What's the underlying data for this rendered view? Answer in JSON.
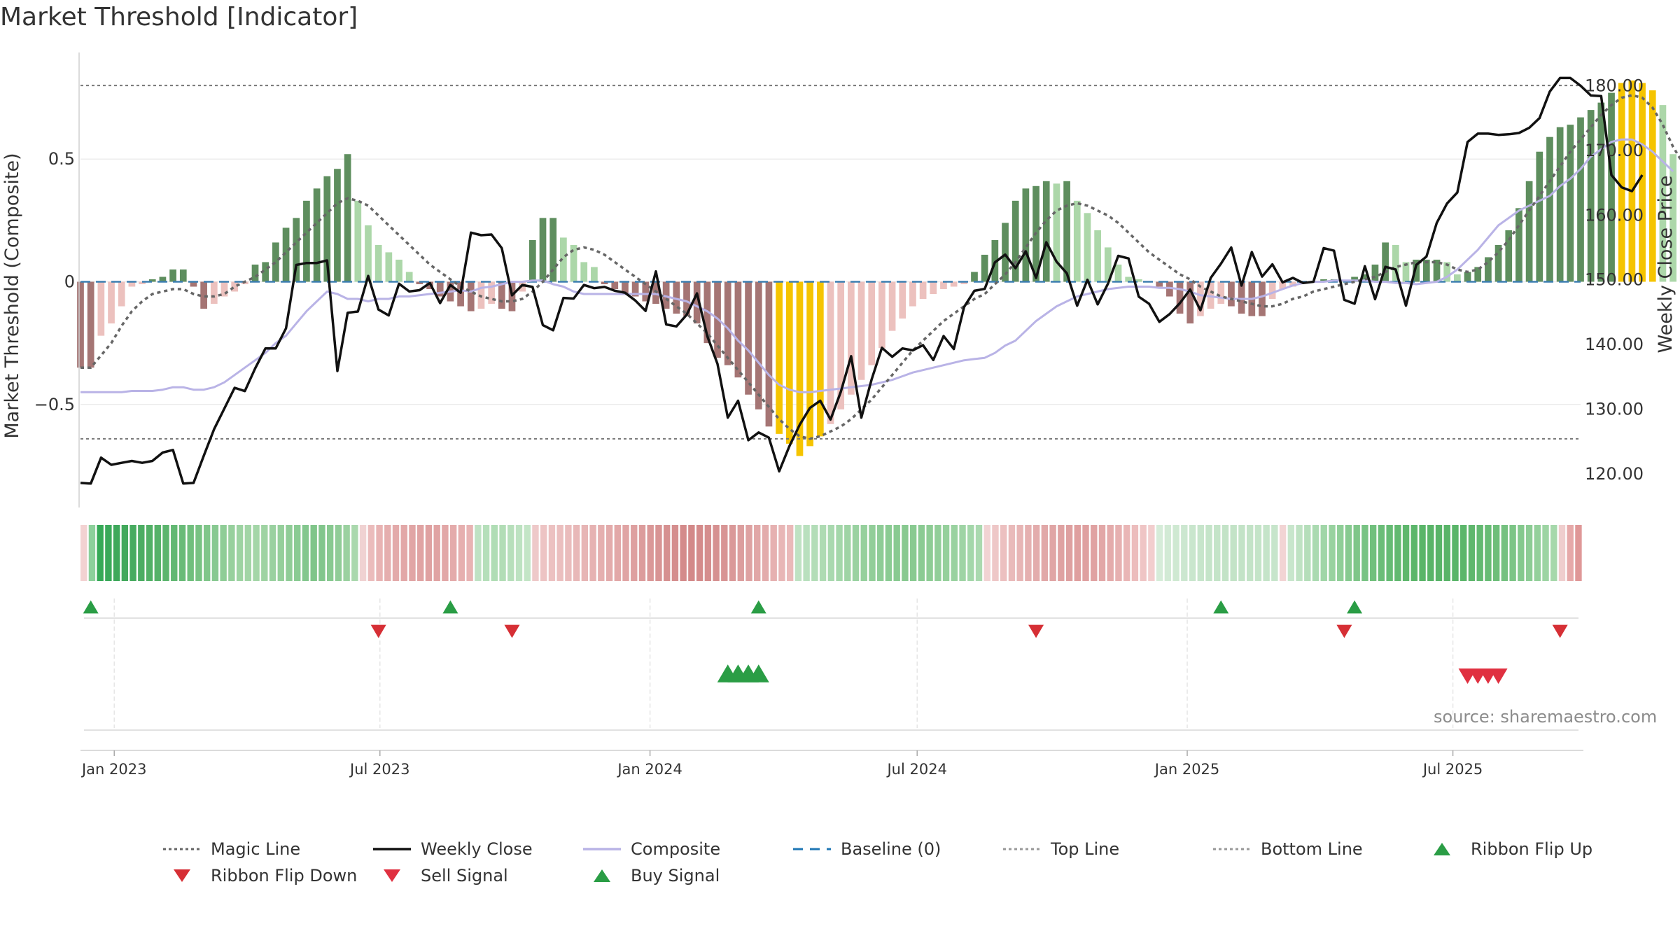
{
  "title": "Market Threshold [Indicator]",
  "source_note": "source: sharemaestro.com",
  "legend": [
    {
      "label": "Magic Line",
      "kind": "dotted-line",
      "color": "#666666"
    },
    {
      "label": "Weekly Close",
      "kind": "solid-line",
      "color": "#111111"
    },
    {
      "label": "Composite",
      "kind": "solid-line",
      "color": "#b9b3e6"
    },
    {
      "label": "Baseline (0)",
      "kind": "dashed-line",
      "color": "#1f77b4"
    },
    {
      "label": "Top Line",
      "kind": "dotted-line",
      "color": "#999999"
    },
    {
      "label": "Bottom Line",
      "kind": "dotted-line",
      "color": "#999999"
    },
    {
      "label": "Ribbon Flip Up",
      "kind": "triangle-up",
      "color": "#2a9d45"
    },
    {
      "label": "Ribbon Flip Down",
      "kind": "triangle-down",
      "color": "#d62f35"
    },
    {
      "label": "Sell Signal",
      "kind": "triangle-down",
      "color": "#e03040"
    },
    {
      "label": "Buy Signal",
      "kind": "triangle-up",
      "color": "#2a9d45"
    }
  ],
  "chart_data": {
    "type": "bar",
    "x_axis": {
      "start": "2022-12-09",
      "end": "2025-09-26",
      "tick_dates": [
        "2023-01-01",
        "2023-07-01",
        "2024-01-01",
        "2024-07-01",
        "2025-01-01",
        "2025-07-01"
      ],
      "tick_labels": [
        "Jan 2023",
        "Jul 2023",
        "Jan 2024",
        "Jul 2024",
        "Jan 2025",
        "Jul 2025"
      ]
    },
    "left_axis": {
      "label": "Market Threshold (Composite)",
      "range": [
        -0.92,
        0.92
      ],
      "ticks": [
        0.5,
        0,
        -0.5
      ],
      "tick_labels": [
        "0.5",
        "0",
        "−0.5"
      ]
    },
    "right_axis": {
      "label": "Weekly Close Price",
      "range": [
        114.8,
        184.6
      ],
      "ticks": [
        180,
        170,
        160,
        150,
        140,
        130,
        120
      ],
      "tick_labels": [
        "180.00",
        "170.00",
        "160.00",
        "150.00",
        "140.00",
        "130.00",
        "120.00"
      ]
    },
    "top_line": 0.8,
    "bottom_line": -0.64,
    "baseline": 0,
    "grid": true,
    "legend_position": "bottom",
    "series": [
      {
        "name": "Market Threshold bars",
        "axis": "left",
        "style": "bar",
        "values": [
          -0.35,
          -0.35,
          -0.22,
          -0.17,
          -0.1,
          -0.02,
          -0.01,
          0.01,
          0.02,
          0.05,
          0.05,
          -0.02,
          -0.11,
          -0.09,
          -0.06,
          -0.04,
          -0.01,
          0.07,
          0.08,
          0.16,
          0.22,
          0.26,
          0.33,
          0.38,
          0.43,
          0.46,
          0.52,
          0.33,
          0.23,
          0.15,
          0.12,
          0.09,
          0.04,
          -0.01,
          -0.03,
          -0.06,
          -0.08,
          -0.1,
          -0.12,
          -0.11,
          -0.09,
          -0.11,
          -0.12,
          -0.04,
          0.17,
          0.26,
          0.26,
          0.18,
          0.15,
          0.08,
          0.06,
          -0.01,
          -0.03,
          -0.05,
          -0.06,
          -0.08,
          -0.09,
          -0.11,
          -0.13,
          -0.14,
          -0.17,
          -0.25,
          -0.31,
          -0.34,
          -0.39,
          -0.46,
          -0.52,
          -0.59,
          -0.62,
          -0.66,
          -0.71,
          -0.67,
          -0.63,
          -0.58,
          -0.52,
          -0.46,
          -0.4,
          -0.34,
          -0.27,
          -0.2,
          -0.15,
          -0.1,
          -0.07,
          -0.05,
          -0.03,
          -0.02,
          -0.01,
          0.04,
          0.11,
          0.17,
          0.24,
          0.33,
          0.38,
          0.39,
          0.41,
          0.4,
          0.41,
          0.33,
          0.28,
          0.21,
          0.14,
          0.07,
          0.02,
          0.01,
          0.0,
          -0.02,
          -0.06,
          -0.13,
          -0.17,
          -0.14,
          -0.11,
          -0.09,
          -0.1,
          -0.13,
          -0.14,
          -0.14,
          -0.07,
          -0.03,
          -0.02,
          0.0,
          0.0,
          0.01,
          0.01,
          0.0,
          0.02,
          0.03,
          0.07,
          0.16,
          0.15,
          0.08,
          0.09,
          0.09,
          0.09,
          0.08,
          0.03,
          0.04,
          0.06,
          0.1,
          0.15,
          0.21,
          0.3,
          0.41,
          0.53,
          0.59,
          0.63,
          0.64,
          0.67,
          0.7,
          0.73,
          0.77,
          0.81,
          0.82,
          0.81,
          0.78,
          0.72,
          0.52,
          0.42,
          0.3,
          0.19,
          0.13
        ]
      },
      {
        "name": "Weekly Close",
        "axis": "right",
        "style": "line",
        "values": [
          118.6,
          118.5,
          122.5,
          121.4,
          121.7,
          122.0,
          121.7,
          122.0,
          123.3,
          123.7,
          118.5,
          118.6,
          122.8,
          126.9,
          130.1,
          133.3,
          132.8,
          136.3,
          139.4,
          139.4,
          142.5,
          152.3,
          152.6,
          152.6,
          153.0,
          135.9,
          144.9,
          145.1,
          150.6,
          145.4,
          144.5,
          149.4,
          148.2,
          148.4,
          149.5,
          146.4,
          149.2,
          148.0,
          157.3,
          156.9,
          157.0,
          154.9,
          147.6,
          149.2,
          148.9,
          143.0,
          142.2,
          147.2,
          147.1,
          149.2,
          148.7,
          148.9,
          148.3,
          148.0,
          146.8,
          145.2,
          151.3,
          143.1,
          142.8,
          144.6,
          147.9,
          141.3,
          137.0,
          128.7,
          131.3,
          125.2,
          126.4,
          125.6,
          120.4,
          124.3,
          127.6,
          130.2,
          131.3,
          128.4,
          132.7,
          138.2,
          128.7,
          134.6,
          139.5,
          138.1,
          139.4,
          139.1,
          139.9,
          137.6,
          141.3,
          139.3,
          145.8,
          148.3,
          148.6,
          152.7,
          153.9,
          151.8,
          154.4,
          150.3,
          155.8,
          152.8,
          151.0,
          146.0,
          150.0,
          146.2,
          149.4,
          153.7,
          153.3,
          147.4,
          146.3,
          143.5,
          144.7,
          146.4,
          148.5,
          145.3,
          150.3,
          152.5,
          155.0,
          149.1,
          154.3,
          150.5,
          152.4,
          149.6,
          150.3,
          149.5,
          149.7,
          154.9,
          154.5,
          146.9,
          146.3,
          152.1,
          147.0,
          152.0,
          151.6,
          146.0,
          152.3,
          153.6,
          158.8,
          161.8,
          163.5,
          171.3,
          172.6,
          172.6,
          172.4,
          172.5,
          172.7,
          173.5,
          175.0,
          179.1,
          181.2,
          181.2,
          180.0,
          178.5,
          178.4,
          166.2,
          164.3,
          163.7,
          166.2
        ]
      },
      {
        "name": "Composite",
        "axis": "left",
        "style": "line",
        "values": [
          -0.45,
          -0.45,
          -0.45,
          -0.45,
          -0.45,
          -0.445,
          -0.445,
          -0.445,
          -0.44,
          -0.43,
          -0.43,
          -0.44,
          -0.44,
          -0.43,
          -0.41,
          -0.38,
          -0.35,
          -0.32,
          -0.29,
          -0.25,
          -0.22,
          -0.17,
          -0.12,
          -0.08,
          -0.04,
          -0.05,
          -0.07,
          -0.07,
          -0.08,
          -0.07,
          -0.07,
          -0.06,
          -0.06,
          -0.055,
          -0.05,
          -0.045,
          -0.04,
          -0.035,
          -0.04,
          -0.025,
          -0.02,
          -0.01,
          0.0,
          0.0,
          0.005,
          0.005,
          -0.01,
          -0.02,
          -0.04,
          -0.05,
          -0.05,
          -0.05,
          -0.05,
          -0.05,
          -0.05,
          -0.05,
          -0.05,
          -0.06,
          -0.07,
          -0.08,
          -0.1,
          -0.12,
          -0.15,
          -0.19,
          -0.24,
          -0.28,
          -0.33,
          -0.38,
          -0.42,
          -0.44,
          -0.45,
          -0.45,
          -0.445,
          -0.44,
          -0.435,
          -0.43,
          -0.425,
          -0.42,
          -0.41,
          -0.4,
          -0.385,
          -0.37,
          -0.36,
          -0.35,
          -0.34,
          -0.33,
          -0.32,
          -0.315,
          -0.31,
          -0.29,
          -0.26,
          -0.24,
          -0.2,
          -0.16,
          -0.13,
          -0.1,
          -0.08,
          -0.06,
          -0.05,
          -0.04,
          -0.03,
          -0.025,
          -0.02,
          -0.02,
          -0.02,
          -0.025,
          -0.025,
          -0.03,
          -0.04,
          -0.055,
          -0.06,
          -0.065,
          -0.07,
          -0.07,
          -0.07,
          -0.06,
          -0.045,
          -0.03,
          -0.015,
          -0.005,
          0.0,
          0.0,
          0.005,
          0.005,
          0.005,
          0.005,
          0.0,
          0.0,
          -0.005,
          -0.005,
          -0.01,
          -0.005,
          0.0,
          0.02,
          0.05,
          0.09,
          0.13,
          0.18,
          0.23,
          0.26,
          0.29,
          0.31,
          0.33,
          0.35,
          0.39,
          0.42,
          0.46,
          0.51,
          0.54,
          0.57,
          0.58,
          0.58,
          0.56,
          0.53,
          0.49,
          0.45
        ]
      },
      {
        "name": "Magic Line",
        "axis": "left",
        "style": "line",
        "values": [
          -0.35,
          -0.35,
          -0.3,
          -0.25,
          -0.18,
          -0.12,
          -0.08,
          -0.05,
          -0.04,
          -0.03,
          -0.03,
          -0.05,
          -0.06,
          -0.06,
          -0.05,
          -0.02,
          0.0,
          0.02,
          0.05,
          0.08,
          0.12,
          0.16,
          0.2,
          0.24,
          0.28,
          0.32,
          0.34,
          0.33,
          0.31,
          0.27,
          0.23,
          0.19,
          0.15,
          0.11,
          0.07,
          0.04,
          0.01,
          -0.02,
          -0.04,
          -0.06,
          -0.07,
          -0.08,
          -0.08,
          -0.07,
          -0.04,
          0.0,
          0.05,
          0.1,
          0.13,
          0.14,
          0.13,
          0.11,
          0.08,
          0.05,
          0.02,
          -0.01,
          -0.04,
          -0.07,
          -0.1,
          -0.13,
          -0.17,
          -0.21,
          -0.26,
          -0.31,
          -0.36,
          -0.41,
          -0.46,
          -0.51,
          -0.56,
          -0.6,
          -0.63,
          -0.64,
          -0.63,
          -0.61,
          -0.59,
          -0.56,
          -0.52,
          -0.48,
          -0.43,
          -0.38,
          -0.33,
          -0.28,
          -0.24,
          -0.2,
          -0.16,
          -0.13,
          -0.1,
          -0.07,
          -0.05,
          -0.01,
          0.03,
          0.08,
          0.14,
          0.2,
          0.25,
          0.29,
          0.31,
          0.32,
          0.31,
          0.29,
          0.27,
          0.24,
          0.2,
          0.16,
          0.12,
          0.09,
          0.06,
          0.03,
          0.01,
          -0.02,
          -0.04,
          -0.06,
          -0.07,
          -0.08,
          -0.09,
          -0.1,
          -0.1,
          -0.09,
          -0.07,
          -0.06,
          -0.04,
          -0.03,
          -0.02,
          -0.01,
          0.0,
          0.01,
          0.02,
          0.04,
          0.06,
          0.07,
          0.08,
          0.08,
          0.08,
          0.07,
          0.05,
          0.04,
          0.05,
          0.08,
          0.12,
          0.17,
          0.23,
          0.29,
          0.35,
          0.41,
          0.47,
          0.53,
          0.58,
          0.63,
          0.68,
          0.72,
          0.75,
          0.76,
          0.75,
          0.71,
          0.64,
          0.55,
          0.48
        ]
      }
    ],
    "ribbon": [
      "#f3d2d2",
      "#8cd09b",
      "#36a957",
      "#3aa95a",
      "#3ea85b",
      "#42a95c",
      "#47ab60",
      "#4cad63",
      "#52b066",
      "#56b269",
      "#5cb56e",
      "#62b873",
      "#69bb78",
      "#70bf7d",
      "#78c283",
      "#80c68a",
      "#88c991",
      "#8fcd97",
      "#97d09d",
      "#9dd3a2",
      "#a2d5a6",
      "#a4d6a8",
      "#9fd3a3",
      "#9ad1a0",
      "#95cf9b",
      "#90cc97",
      "#8acb93",
      "#84c78e",
      "#80c58a",
      "#82c68c",
      "#88c990",
      "#90cc97",
      "#9bd1a0",
      "#aad8ad",
      "#f0d2d2",
      "#ebbcbc",
      "#e8b3b3",
      "#e5aeae",
      "#e3aaaa",
      "#e2a8a8",
      "#e1a5a5",
      "#e0a3a3",
      "#dfa1a1",
      "#e0a3a3",
      "#e2a7a7",
      "#e4abab",
      "#e6afaf",
      "#e8b3b3",
      "#bfe2c4",
      "#b5dfba",
      "#b0ddb5",
      "#b2ddb6",
      "#b7dfbb",
      "#bde2c1",
      "#c3e5c6",
      "#eec9c9",
      "#edc4c4",
      "#ecc1c1",
      "#ebbfbf",
      "#eabcbc",
      "#e8b8b8",
      "#e7b5b5",
      "#e6b2b2",
      "#e5afaf",
      "#e3abab",
      "#e2a8a8",
      "#e0a4a4",
      "#dea0a0",
      "#dc9c9c",
      "#da9898",
      "#d89494",
      "#d69191",
      "#d58e8e",
      "#d48b8b",
      "#d38989",
      "#d48b8b",
      "#d58e8e",
      "#d69191",
      "#d89595",
      "#da9999",
      "#dc9e9e",
      "#dea2a2",
      "#e1a7a7",
      "#e3acac",
      "#e6b1b1",
      "#e8b6b6",
      "#eab9b9",
      "#bfe2c3",
      "#b9e0be",
      "#b3ddb8",
      "#aedbb3",
      "#a9d9af",
      "#a4d7aa",
      "#9fd4a5",
      "#9ad2a1",
      "#96d09d",
      "#92ce99",
      "#8ecc96",
      "#8bcb93",
      "#89ca91",
      "#88c990",
      "#89ca91",
      "#8bcb93",
      "#8ecc95",
      "#92ce99",
      "#96d09c",
      "#9ad2a0",
      "#9fd4a5",
      "#a4d7aa",
      "#aad9af",
      "#f1d3d3",
      "#eec7c7",
      "#ecc0c0",
      "#e9baba",
      "#e7b5b5",
      "#e5b0b0",
      "#e3acac",
      "#e1a8a8",
      "#e0a5a5",
      "#dfa2a2",
      "#dea0a0",
      "#df9f9f",
      "#dfa0a0",
      "#e0a2a2",
      "#e2a7a7",
      "#e4abab",
      "#e6b0b0",
      "#e9b6b6",
      "#ecbdbd",
      "#efc5c5",
      "#f2cece",
      "#d6ecd9",
      "#d2ead5",
      "#cfe9d2",
      "#cce7d0",
      "#c9e6cd",
      "#c7e5cb",
      "#c5e4c9",
      "#c4e4c8",
      "#c3e3c7",
      "#c3e3c7",
      "#c3e3c7",
      "#c3e3c7",
      "#c4e4c8",
      "#c5e4c9",
      "#c7e5cb",
      "#f2d4d4",
      "#c8e6cc",
      "#bfe2c3",
      "#b5deba",
      "#abdab1",
      "#a1d6a8",
      "#98d29f",
      "#8fce97",
      "#87ca90",
      "#7fc689",
      "#78c383",
      "#71c07d",
      "#6bbd78",
      "#66bb74",
      "#62b970",
      "#5fb76d",
      "#5cb66b",
      "#5ab569",
      "#59b468",
      "#59b468",
      "#59b468",
      "#5ab569",
      "#5cb66b",
      "#5fb76d",
      "#63b971",
      "#68bc75",
      "#6ebe7a",
      "#75c180",
      "#7cc586",
      "#84c98d",
      "#8ccc94",
      "#94d09b",
      "#9dd4a3",
      "#a6d8ab",
      "#efcdcd",
      "#e6a9a9",
      "#df9797"
    ],
    "ribbon_flip_up_dates": [
      "2022-12-16",
      "2023-08-18",
      "2024-03-15",
      "2025-01-24",
      "2025-04-25"
    ],
    "ribbon_flip_down_dates": [
      "2023-06-30",
      "2023-09-29",
      "2024-09-20",
      "2025-04-18",
      "2025-09-12"
    ],
    "buy_signal_dates": [
      "2024-02-23",
      "2024-03-01",
      "2024-03-08",
      "2024-03-15"
    ],
    "sell_signal_dates": [
      "2025-07-11",
      "2025-07-18",
      "2025-07-25",
      "2025-08-01"
    ]
  }
}
